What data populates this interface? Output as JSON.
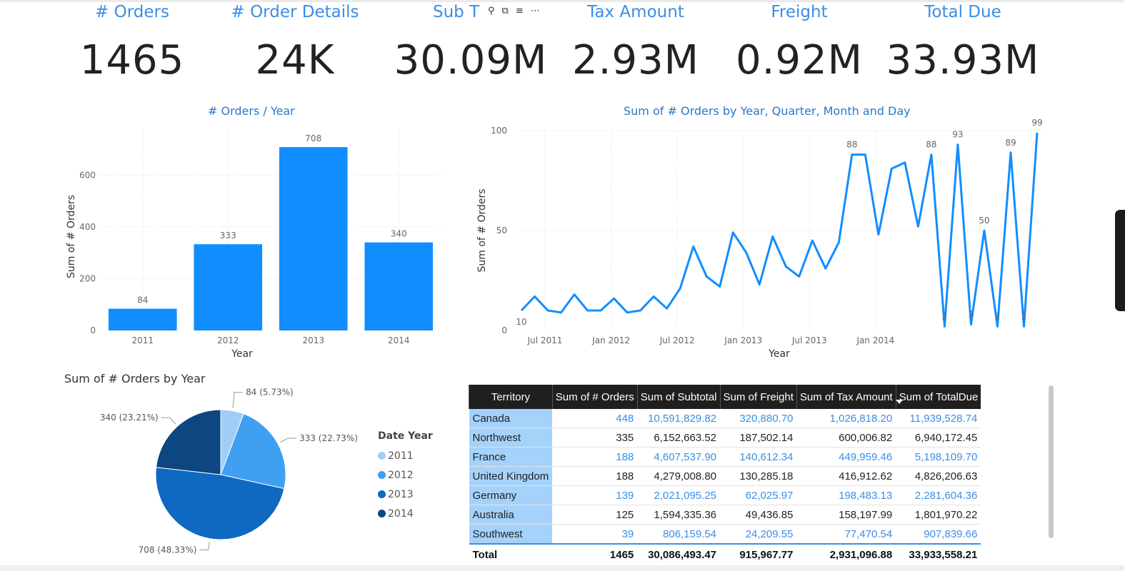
{
  "kpis": [
    {
      "title": "# Orders",
      "value": "1465"
    },
    {
      "title": "# Order Details",
      "value": "24K"
    },
    {
      "title": "Sub T",
      "value": "30.09M"
    },
    {
      "title": "Tax Amount",
      "value": "2.93M"
    },
    {
      "title": "Freight",
      "value": "0.92M"
    },
    {
      "title": "Total Due",
      "value": "33.93M"
    }
  ],
  "visual_header_icons": [
    "pin-icon",
    "copy-icon",
    "filter-icon",
    "more-options-icon"
  ],
  "colors": {
    "bar": "#118dff",
    "line": "#118dff",
    "kpi_title": "#3a8ee6",
    "table_header": "#1f1f1f",
    "territory_cell": "#a5d2fb"
  },
  "chart_data": [
    {
      "type": "bar",
      "title": "# Orders / Year",
      "xlabel": "Year",
      "ylabel": "Sum of # Orders",
      "categories": [
        "2011",
        "2012",
        "2013",
        "2014"
      ],
      "values": [
        84,
        333,
        708,
        340
      ],
      "ylim": [
        0,
        780
      ],
      "yticks": [
        0,
        200,
        400,
        600
      ],
      "grid": true
    },
    {
      "type": "line",
      "title": "Sum of # Orders by Year, Quarter, Month and Day",
      "xlabel": "Year",
      "ylabel": "Sum of # Orders",
      "x_tick_labels": [
        "Jul 2011",
        "Jan 2012",
        "Jul 2012",
        "Jan 2013",
        "Jul 2013",
        "Jan 2014"
      ],
      "yticks": [
        0,
        50,
        100
      ],
      "ylim": [
        0,
        100
      ],
      "values": [
        10,
        17,
        10,
        9,
        18,
        10,
        10,
        16,
        9,
        10,
        17,
        11,
        21,
        42,
        27,
        22,
        49,
        39,
        23,
        47,
        32,
        27,
        45,
        31,
        44,
        88,
        88,
        48,
        81,
        84,
        52,
        88,
        2,
        93,
        3,
        50,
        2,
        89,
        2,
        99
      ],
      "data_labels": [
        {
          "index": 0,
          "text": "10"
        },
        {
          "index": 25,
          "text": "88"
        },
        {
          "index": 31,
          "text": "88"
        },
        {
          "index": 32,
          "text": "2"
        },
        {
          "index": 33,
          "text": "93"
        },
        {
          "index": 34,
          "text": "3"
        },
        {
          "index": 35,
          "text": "50"
        },
        {
          "index": 36,
          "text": "2"
        },
        {
          "index": 37,
          "text": "89"
        },
        {
          "index": 38,
          "text": "2"
        },
        {
          "index": 39,
          "text": "99"
        }
      ],
      "grid": true
    },
    {
      "type": "pie",
      "title": "Sum of # Orders by Year",
      "legend_title": "Date Year",
      "legend_position": "right",
      "slices": [
        {
          "label": "2011",
          "value": 84,
          "percent": "5.73%",
          "color": "#a0cdf8"
        },
        {
          "label": "2012",
          "value": 333,
          "percent": "22.73%",
          "color": "#3f9ff0"
        },
        {
          "label": "2013",
          "value": 708,
          "percent": "48.33%",
          "color": "#0f68c2"
        },
        {
          "label": "2014",
          "value": 340,
          "percent": "23.21%",
          "color": "#0d4680"
        }
      ]
    },
    {
      "type": "table",
      "columns": [
        "Territory",
        "Sum of # Orders",
        "Sum of Subtotal",
        "Sum of Freight",
        "Sum of Tax Amount",
        "Sum of TotalDue"
      ],
      "rows": [
        [
          "Canada",
          "448",
          "10,591,829.82",
          "320,880.70",
          "1,026,818.20",
          "11,939,528.74"
        ],
        [
          "Northwest",
          "335",
          "6,152,663.52",
          "187,502.14",
          "600,006.82",
          "6,940,172.45"
        ],
        [
          "France",
          "188",
          "4,607,537.90",
          "140,612.34",
          "449,959.46",
          "5,198,109.70"
        ],
        [
          "United Kingdom",
          "188",
          "4,279,008.80",
          "130,285.18",
          "416,912.62",
          "4,826,206.63"
        ],
        [
          "Germany",
          "139",
          "2,021,095.25",
          "62,025.97",
          "198,483.13",
          "2,281,604.36"
        ],
        [
          "Australia",
          "125",
          "1,594,335.36",
          "49,436.85",
          "158,197.99",
          "1,801,970.22"
        ],
        [
          "Southwest",
          "39",
          "806,159.54",
          "24,209.55",
          "77,470.54",
          "907,839.66"
        ]
      ],
      "total": [
        "Total",
        "1465",
        "30,086,493.47",
        "915,967.77",
        "2,931,096.88",
        "33,933,558.21"
      ],
      "sorted_column": "Sum of TotalDue"
    }
  ]
}
